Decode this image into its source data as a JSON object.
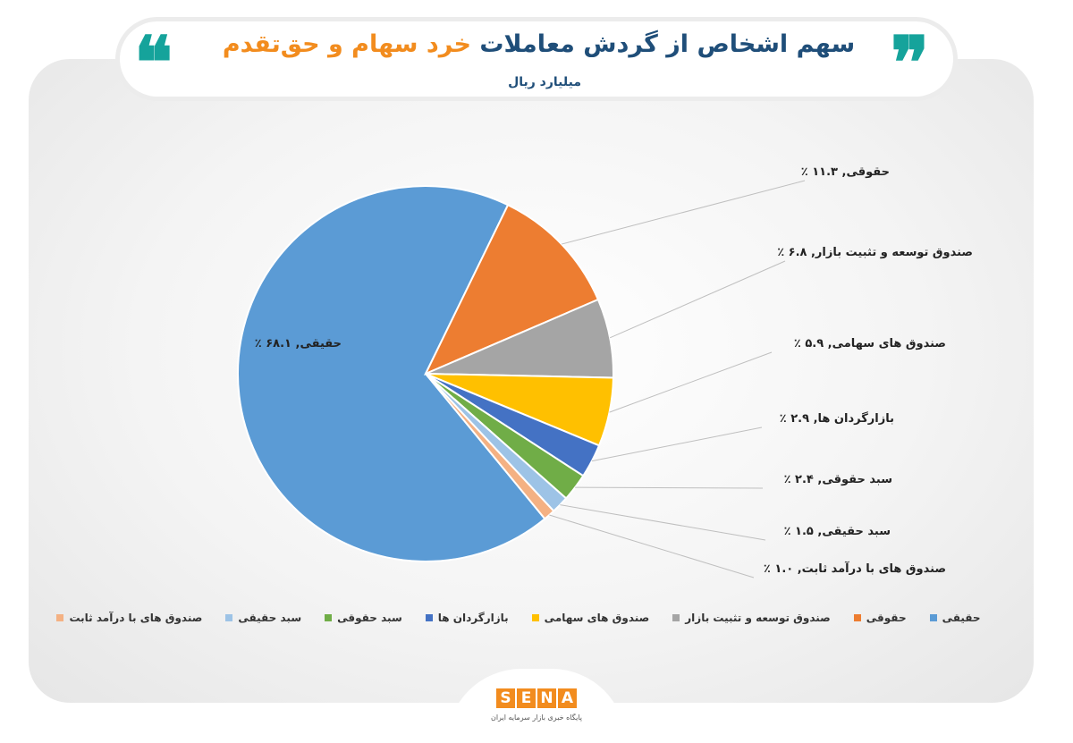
{
  "header": {
    "title_part1": "سهم اشخاص از گردش معاملات",
    "title_part2": "خرد سهام و حق‌تقدم",
    "subtitle": "میلیارد ریال",
    "quote_left": "❝",
    "quote_right": "❞"
  },
  "chart_data": {
    "type": "pie",
    "title": "سهم اشخاص از گردش معاملات خرد سهام و حق‌تقدم",
    "subtitle": "میلیارد ریال",
    "legend_position": "bottom",
    "slices": [
      {
        "legend": "حقیقی",
        "label": "حقیقی, ۶۸.۱ ٪",
        "value": 68.1,
        "color": "#5b9bd5"
      },
      {
        "legend": "حقوقی",
        "label": "حقوقی, ۱۱.۳ ٪",
        "value": 11.3,
        "color": "#ed7d31"
      },
      {
        "legend": "صندوق توسعه و تثبیت بازار",
        "label": "صندوق توسعه و تثبیت بازار, ۶.۸ ٪",
        "value": 6.8,
        "color": "#a5a5a5"
      },
      {
        "legend": "صندوق های سهامی",
        "label": "صندوق های سهامی, ۵.۹ ٪",
        "value": 5.9,
        "color": "#ffc000"
      },
      {
        "legend": "بازارگردان ها",
        "label": "بازارگردان ها, ۲.۹ ٪",
        "value": 2.9,
        "color": "#4472c4"
      },
      {
        "legend": "سبد حقوقی",
        "label": "سبد حقوقی, ۲.۴ ٪",
        "value": 2.4,
        "color": "#70ad47"
      },
      {
        "legend": "سبد حقیقی",
        "label": "سبد حقیقی, ۱.۵ ٪",
        "value": 1.5,
        "color": "#9dc3e6"
      },
      {
        "legend": "صندوق های با درآمد ثابت",
        "label": "صندوق های با درآمد ثابت, ۱.۰ ٪",
        "value": 1.0,
        "color": "#f4b183"
      }
    ]
  },
  "logo": {
    "letters": [
      "S",
      "E",
      "N",
      "A"
    ],
    "tagline": "پایگاه خبری بازار سرمایه ایران",
    "color": "#f28c1e"
  }
}
